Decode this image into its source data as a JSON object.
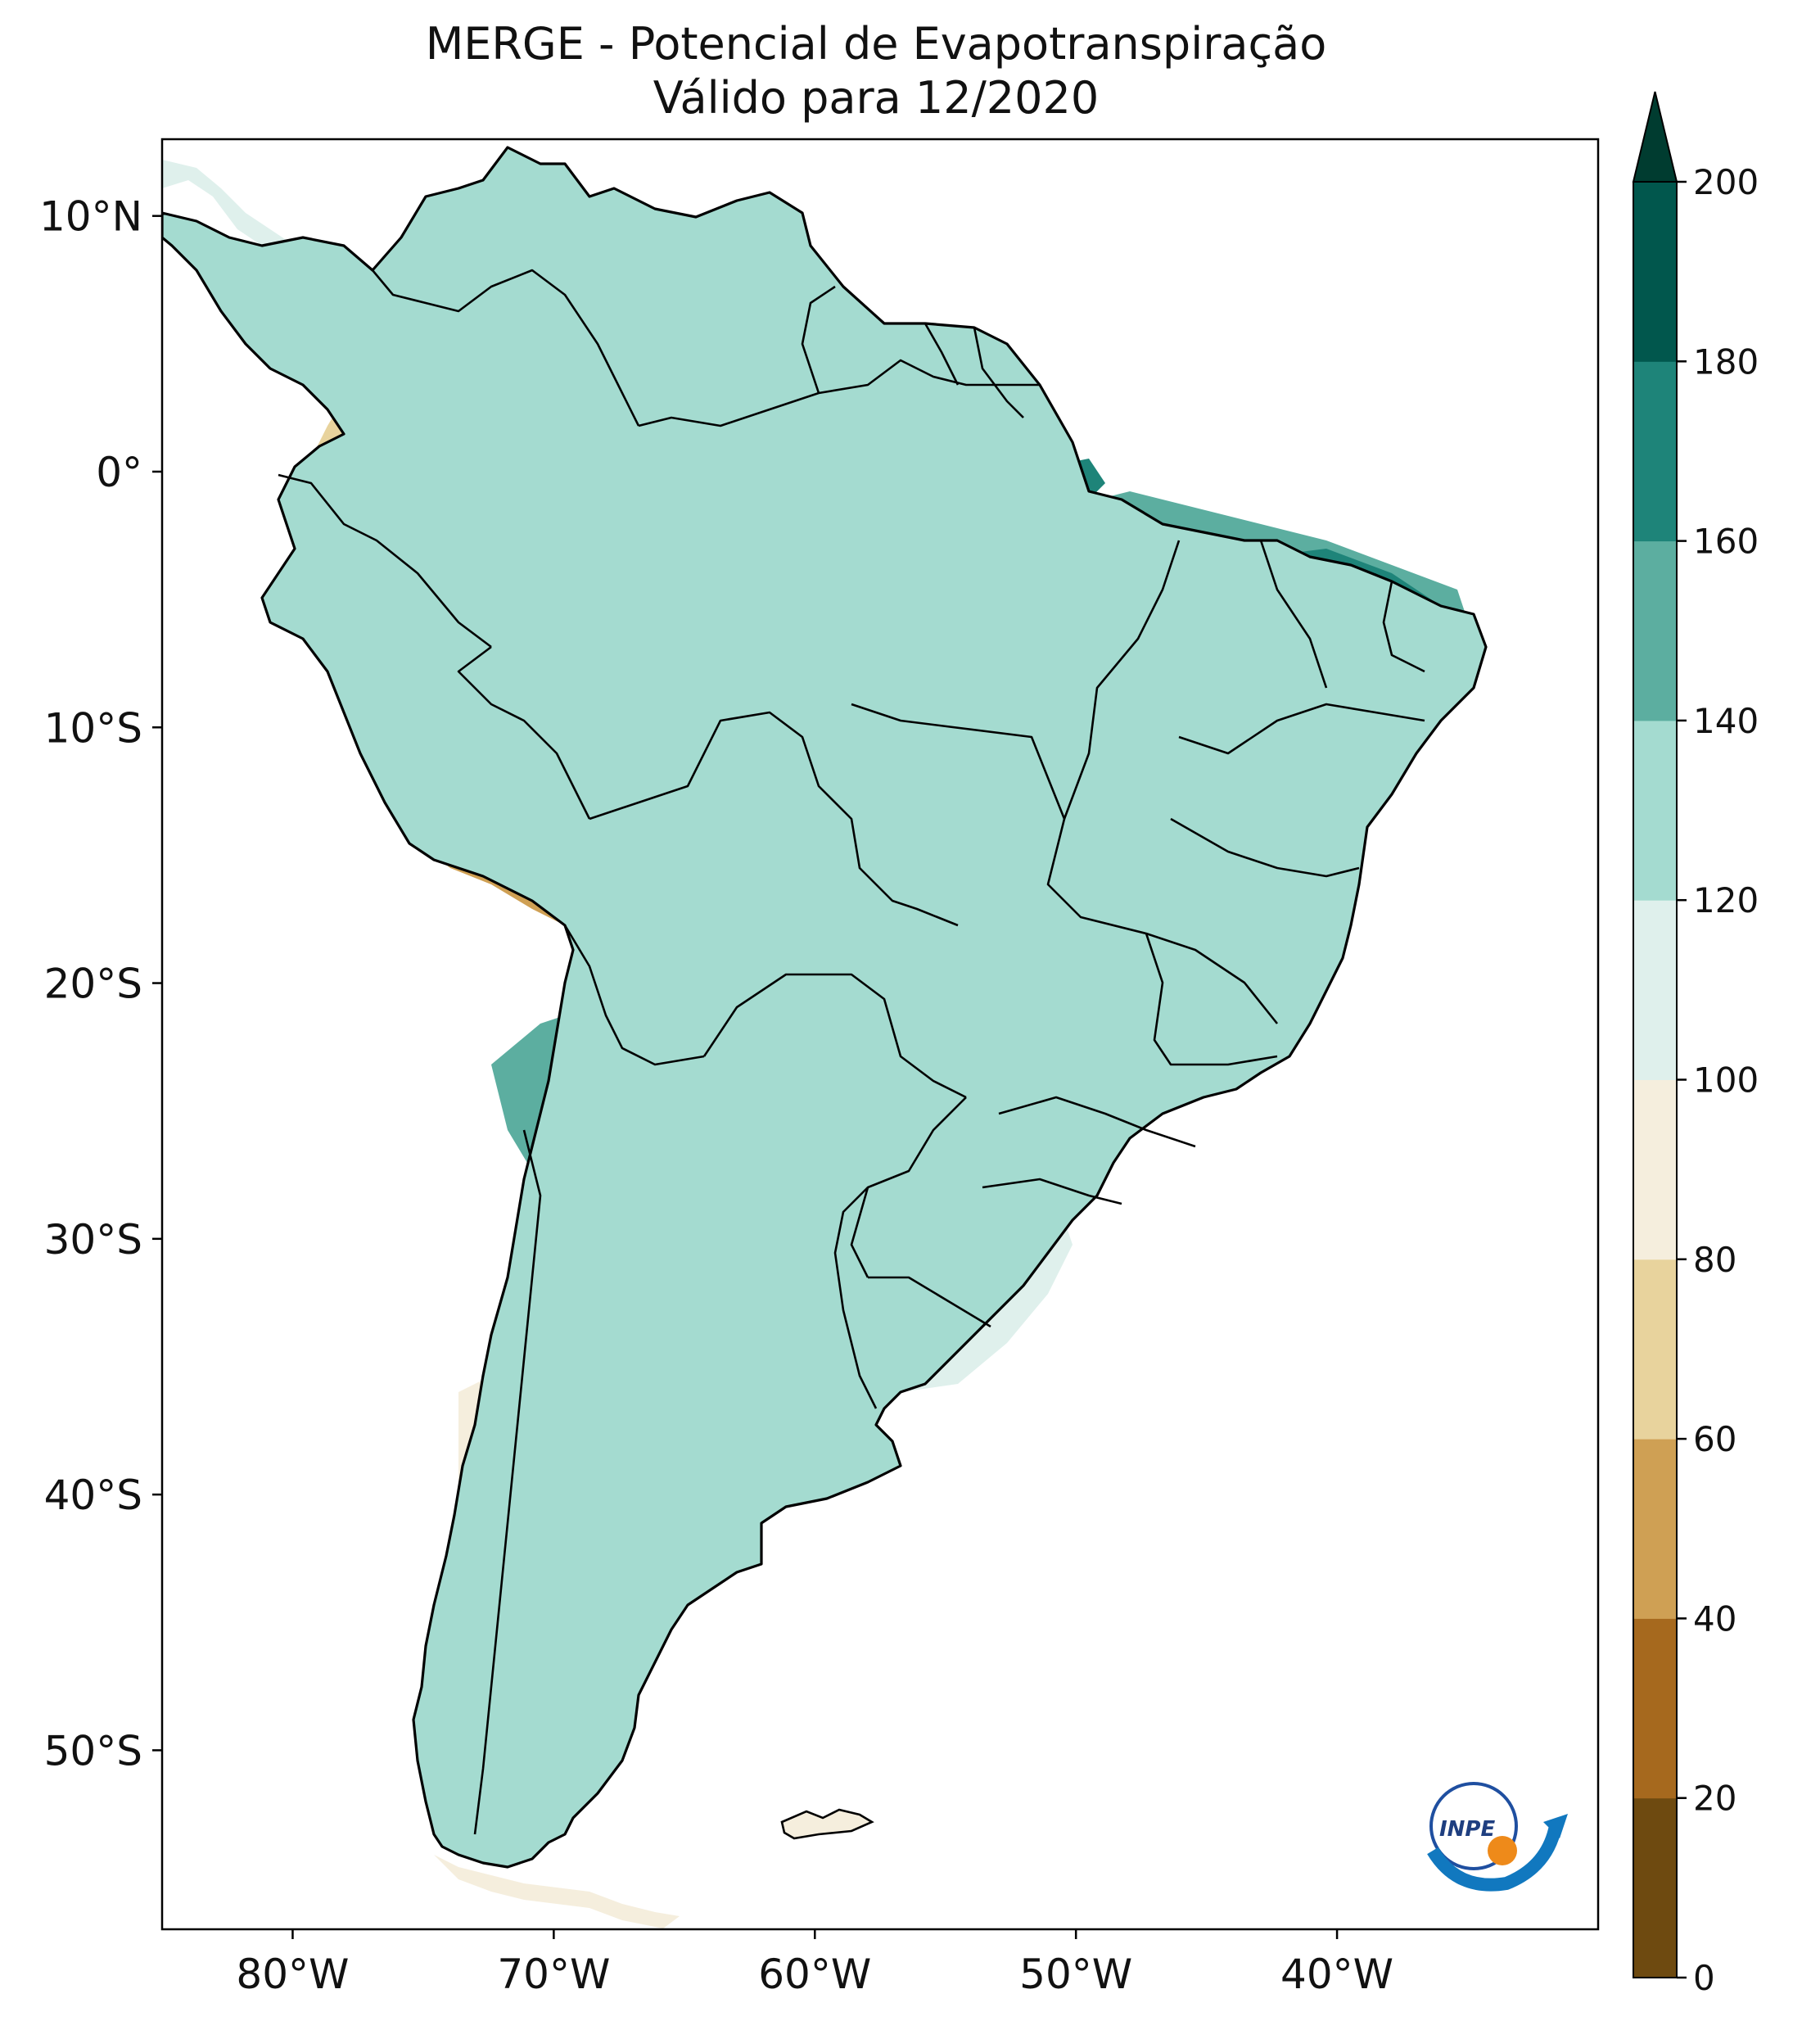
{
  "title": "MERGE - Potencial de Evapotranspiração",
  "subtitle": "Válido para 12/2020",
  "map": {
    "lon_range": [
      -85,
      -30
    ],
    "lat_range": [
      -57,
      13
    ],
    "x_ticks": [
      {
        "lon": -80,
        "label": "80°W"
      },
      {
        "lon": -70,
        "label": "70°W"
      },
      {
        "lon": -60,
        "label": "60°W"
      },
      {
        "lon": -50,
        "label": "50°W"
      },
      {
        "lon": -40,
        "label": "40°W"
      }
    ],
    "y_ticks": [
      {
        "lat": 10,
        "label": "10°N"
      },
      {
        "lat": 0,
        "label": "0°"
      },
      {
        "lat": -10,
        "label": "10°S"
      },
      {
        "lat": -20,
        "label": "20°S"
      },
      {
        "lat": -30,
        "label": "30°S"
      },
      {
        "lat": -40,
        "label": "40°S"
      },
      {
        "lat": -50,
        "label": "50°S"
      }
    ]
  },
  "colorbar": {
    "min": 0,
    "max": 200,
    "extend": "max",
    "labels": [
      "0",
      "20",
      "40",
      "60",
      "80",
      "100",
      "120",
      "140",
      "160",
      "180",
      "200"
    ],
    "colors": [
      "#6e4a10",
      "#a6691e",
      "#cfa054",
      "#e8d39d",
      "#f5eedd",
      "#dff0ec",
      "#a4dbd0",
      "#5caea0",
      "#1e8479",
      "#01574d",
      "#003c30"
    ]
  },
  "logo": {
    "text": "INPE"
  }
}
